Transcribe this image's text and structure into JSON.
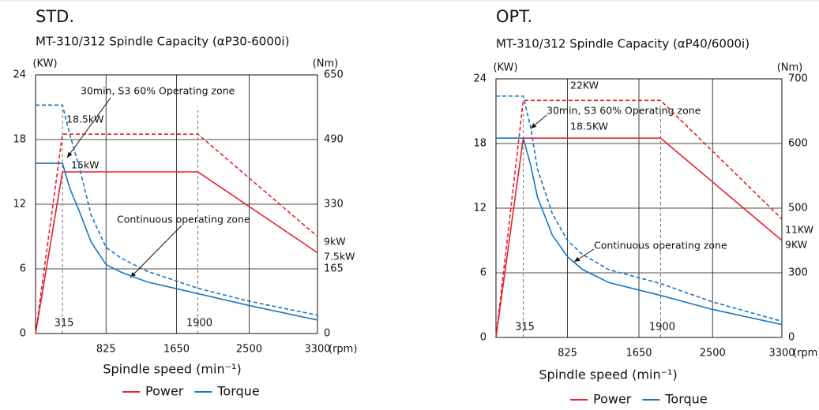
{
  "chart_data": [
    {
      "type": "line",
      "title": "STD.",
      "subtitle": "MT-310/312 Spindle Capacity (αP30-6000i)",
      "ylabel": "(KW)",
      "y2label": "(Nm)",
      "xunit": "(rpm)",
      "xlabel": "Spindle speed (min⁻¹)",
      "xlim": [
        0,
        3300
      ],
      "xticks": [
        825,
        1650,
        2500,
        3300
      ],
      "ylim": [
        0,
        24
      ],
      "yticks": [
        0,
        6,
        12,
        18,
        24
      ],
      "y2labels": [
        "0",
        "165",
        "330",
        "490",
        "650"
      ],
      "vlines": [
        315,
        1900
      ],
      "grid": true,
      "series": [
        {
          "name": "Power",
          "color": "#e8202a",
          "x": [
            0,
            315,
            1900,
            3300
          ],
          "values": [
            0,
            15,
            15,
            7.5
          ]
        },
        {
          "name": "Torque",
          "color": "#1a75bc",
          "x": [
            0,
            315,
            400,
            520,
            650,
            825,
            1000,
            1300,
            1900,
            2500,
            3300
          ],
          "values": [
            15.8,
            15.8,
            13.5,
            11.2,
            8.5,
            6.4,
            5.7,
            4.8,
            3.7,
            2.6,
            1.25
          ]
        },
        {
          "color": "#e8202a",
          "dash": true,
          "x": [
            0,
            315,
            1900,
            3300
          ],
          "values": [
            0,
            18.5,
            18.5,
            9
          ]
        },
        {
          "color": "#1a75bc",
          "dash": true,
          "x": [
            0,
            315,
            400,
            520,
            650,
            825,
            1000,
            1300,
            1900,
            2500,
            3300
          ],
          "values": [
            21.2,
            21.2,
            18.5,
            15.2,
            11,
            8,
            7,
            5.8,
            4.2,
            3,
            1.7
          ]
        }
      ],
      "annotations": [
        "30min, S3 60% Operating zone",
        "18.5kW",
        "15kW",
        "Continuous operating zone",
        "9kW",
        "7.5kW"
      ]
    },
    {
      "type": "line",
      "title": "OPT.",
      "subtitle": "MT-310/312 Spindle Capacity (αP40/6000i)",
      "ylabel": "(KW)",
      "y2label": "(Nm)",
      "xunit": "(rpm)",
      "xlabel": "Spindle speed (min⁻¹)",
      "xlim": [
        0,
        3300
      ],
      "xticks": [
        825,
        1650,
        2500,
        3300
      ],
      "ylim": [
        0,
        24
      ],
      "yticks": [
        0,
        6,
        12,
        18,
        24
      ],
      "y2labels": [
        "0",
        "300",
        "500",
        "600",
        "700"
      ],
      "vlines": [
        315,
        1900
      ],
      "grid": true,
      "series": [
        {
          "name": "Power",
          "color": "#e8202a",
          "x": [
            0,
            315,
            1900,
            3300
          ],
          "values": [
            0,
            18.5,
            18.5,
            9
          ]
        },
        {
          "name": "Torque",
          "color": "#1a75bc",
          "x": [
            0,
            315,
            400,
            480,
            650,
            825,
            1000,
            1300,
            1900,
            2500,
            3300
          ],
          "values": [
            18.5,
            18.5,
            16,
            13,
            9.5,
            7.5,
            6.3,
            5.1,
            3.9,
            2.6,
            1.2
          ]
        },
        {
          "color": "#e8202a",
          "dash": true,
          "x": [
            0,
            315,
            1900,
            3300
          ],
          "values": [
            0,
            22,
            22,
            11
          ]
        },
        {
          "color": "#1a75bc",
          "dash": true,
          "x": [
            0,
            315,
            400,
            480,
            650,
            825,
            1000,
            1300,
            1900,
            2500,
            3300
          ],
          "values": [
            22.4,
            22.4,
            19.5,
            15.6,
            11.5,
            9,
            7.7,
            6.3,
            5,
            3.3,
            1.5
          ]
        }
      ],
      "annotations": [
        "22KW",
        "30min, S3 60% Operating zone",
        "18.5KW",
        "Continuous operating zone",
        "11KW",
        "9KW"
      ]
    }
  ]
}
